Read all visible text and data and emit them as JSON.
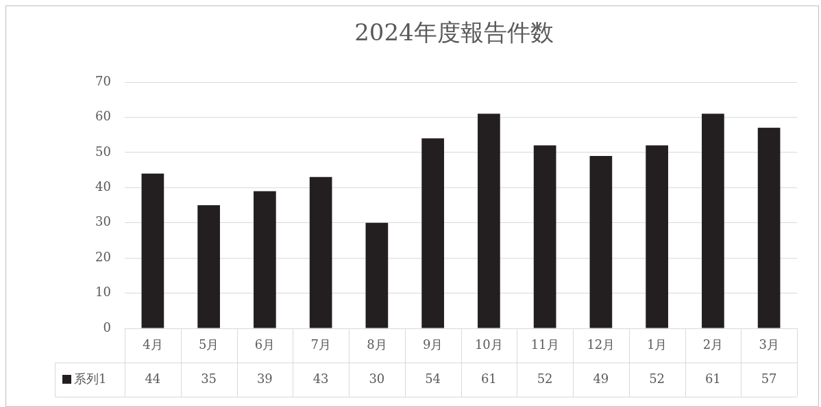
{
  "chart_data": {
    "type": "bar",
    "title": "2024年度報告件数",
    "categories": [
      "4月",
      "5月",
      "6月",
      "7月",
      "8月",
      "9月",
      "10月",
      "11月",
      "12月",
      "1月",
      "2月",
      "3月"
    ],
    "series": [
      {
        "name": "系列1",
        "color": "#231f20",
        "values": [
          44,
          35,
          39,
          43,
          30,
          54,
          61,
          52,
          49,
          52,
          61,
          57
        ]
      }
    ],
    "ylim": [
      0,
      70
    ],
    "yticks": [
      0,
      10,
      20,
      30,
      40,
      50,
      60,
      70
    ],
    "grid": "y",
    "legend": "bottom",
    "data_labels": true
  }
}
